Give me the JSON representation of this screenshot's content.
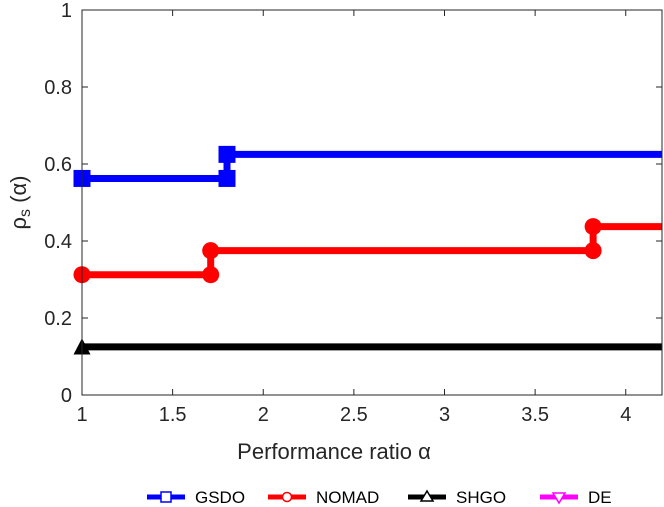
{
  "chart_data": {
    "type": "line",
    "step": true,
    "xlabel": "Performance ratio α",
    "ylabel": {
      "main": "ρ",
      "sub": "s",
      "rest": " (α)"
    },
    "xlim": [
      1,
      4.2
    ],
    "ylim": [
      0,
      1
    ],
    "xticks": [
      1,
      1.5,
      2,
      2.5,
      3,
      3.5,
      4
    ],
    "yticks": [
      0,
      0.2,
      0.4,
      0.6,
      0.8,
      1
    ],
    "xtick_labels": [
      "1",
      "1.5",
      "2",
      "2.5",
      "3",
      "3.5",
      "4"
    ],
    "ytick_labels": [
      "0",
      "0.2",
      "0.4",
      "0.6",
      "0.8",
      "1"
    ],
    "grid": false,
    "legend_position": "bottom",
    "series": [
      {
        "name": "GSDO",
        "color": "#0000ff",
        "marker": "square",
        "x": [
          1,
          1.8,
          1.8,
          4.2
        ],
        "y": [
          0.5625,
          0.5625,
          0.625,
          0.625
        ]
      },
      {
        "name": "NOMAD",
        "color": "#ff0000",
        "marker": "circle",
        "x": [
          1,
          1.71,
          1.71,
          3.82,
          3.82,
          4.2
        ],
        "y": [
          0.3125,
          0.3125,
          0.375,
          0.375,
          0.4375,
          0.4375
        ]
      },
      {
        "name": "SHGO",
        "color": "#000000",
        "marker": "triangle",
        "x": [
          1,
          4.2
        ],
        "y": [
          0.125,
          0.125
        ]
      },
      {
        "name": "DE",
        "color": "#ff00ff",
        "marker": "triangle-down",
        "x": [],
        "y": []
      }
    ]
  }
}
